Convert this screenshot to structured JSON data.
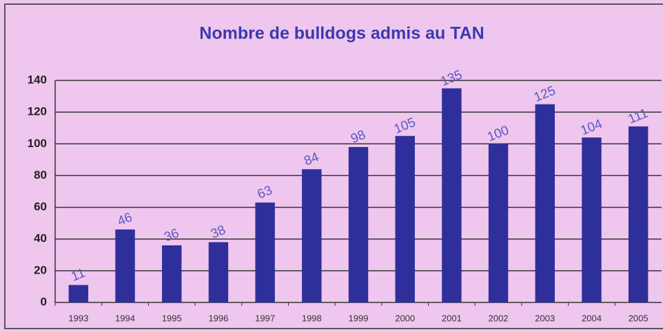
{
  "chart_data": {
    "type": "bar",
    "title": "Nombre de bulldogs admis au TAN",
    "categories": [
      "1993",
      "1994",
      "1995",
      "1996",
      "1997",
      "1998",
      "1999",
      "2000",
      "2001",
      "2002",
      "2003",
      "2004",
      "2005"
    ],
    "values": [
      11,
      46,
      36,
      38,
      63,
      84,
      98,
      105,
      135,
      100,
      125,
      104,
      111
    ],
    "color": "#2f2f9c",
    "ylim": [
      0,
      140
    ],
    "yticks": [
      0,
      20,
      40,
      60,
      80,
      100,
      120,
      140
    ],
    "grid": true
  }
}
